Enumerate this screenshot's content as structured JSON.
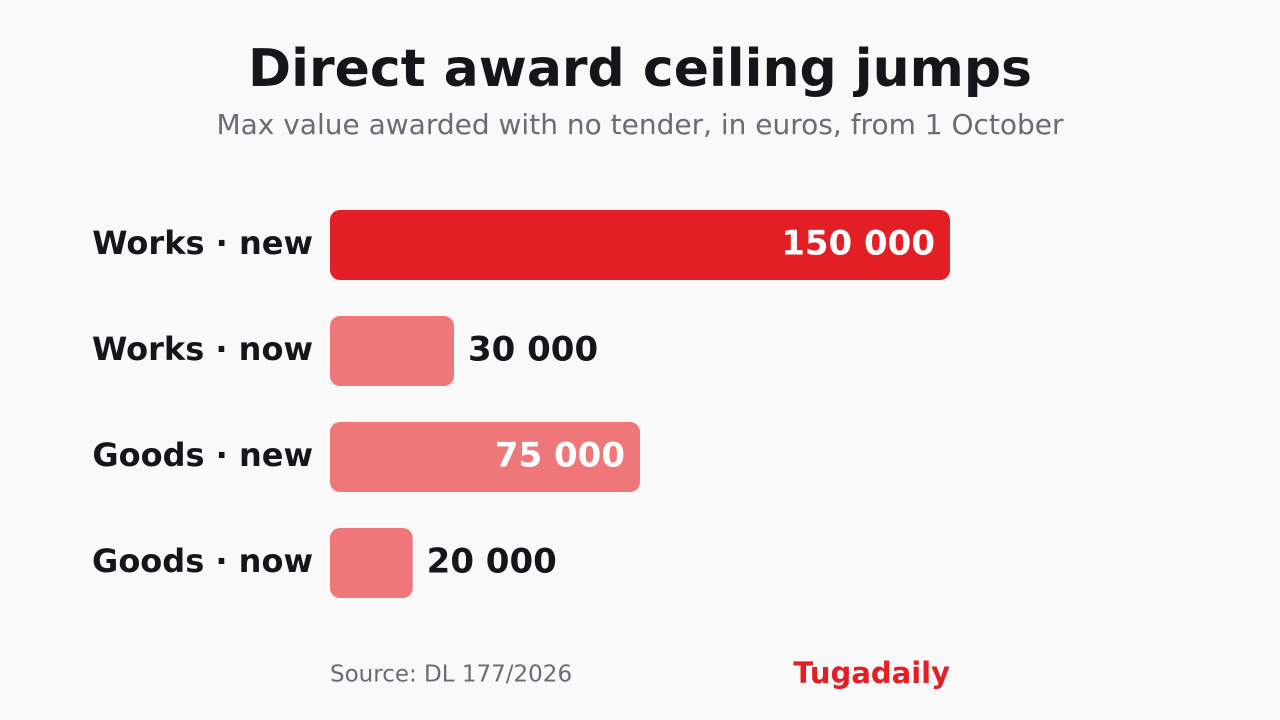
{
  "chart_data": {
    "type": "bar",
    "orientation": "horizontal",
    "title": "Direct award ceiling jumps",
    "subtitle": "Max value awarded with no tender, in euros, from 1 October",
    "categories": [
      "Works · new",
      "Works · now",
      "Goods · new",
      "Goods · now"
    ],
    "values": [
      150000,
      30000,
      75000,
      20000
    ],
    "value_labels": [
      "150 000",
      "30 000",
      "75 000",
      "20 000"
    ],
    "colors": [
      "#e31e24",
      "#ef7779",
      "#ef7779",
      "#ef7779"
    ],
    "source": "Source: DL 177/2026",
    "brand": "Tugadaily"
  }
}
